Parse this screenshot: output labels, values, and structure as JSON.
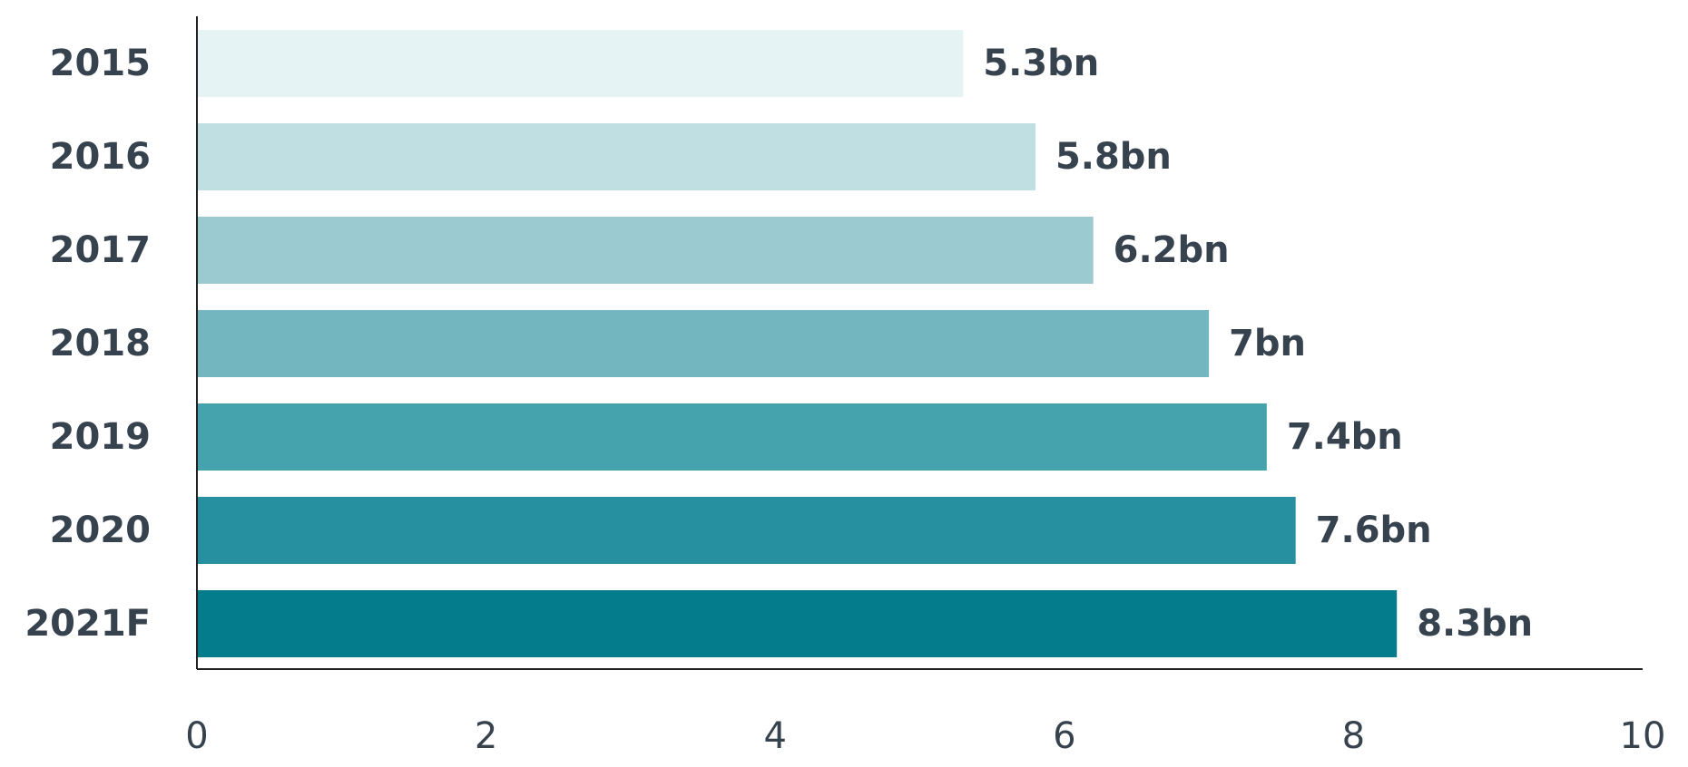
{
  "chart_data": {
    "type": "bar",
    "orientation": "horizontal",
    "categories": [
      "2015",
      "2016",
      "2017",
      "2018",
      "2019",
      "2020",
      "2021F"
    ],
    "values": [
      5.3,
      5.8,
      6.2,
      7,
      7.4,
      7.6,
      8.3
    ],
    "value_labels": [
      "5.3bn",
      "5.8bn",
      "6.2bn",
      "7bn",
      "7.4bn",
      "7.6bn",
      "8.3bn"
    ],
    "colors": [
      "#e6f3f4",
      "#c0dfe3",
      "#9bcad1",
      "#74b6bf",
      "#44a3ad",
      "#2790a0",
      "#057c8b"
    ],
    "xlim": [
      0,
      10
    ],
    "xticks": [
      0,
      2,
      4,
      6,
      8,
      10
    ],
    "grid": false
  }
}
